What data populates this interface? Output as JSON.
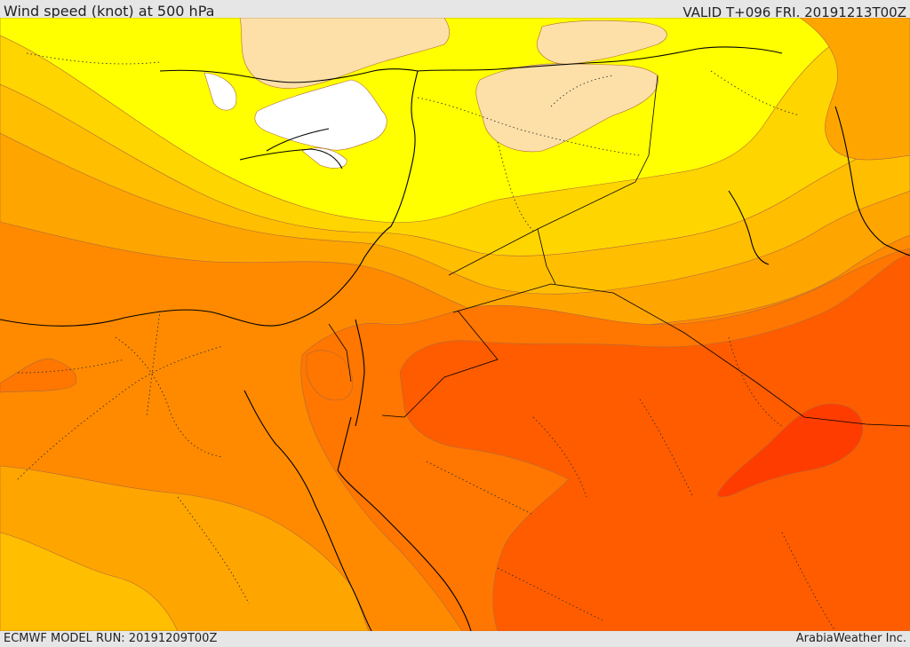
{
  "header": {
    "title": "Wind speed (knot) at 500 hPa",
    "valid_label": "VALID T+096 FRI. 20191213T00Z"
  },
  "footer": {
    "model_run": "ECMWF MODEL RUN: 20191209T00Z",
    "credit": "ArabiaWeather Inc."
  },
  "map": {
    "variable": "wind speed",
    "units": "knot",
    "pressure_level_hPa": 500,
    "colors": {
      "band_0_white": "#ffffff",
      "band_1_wheat": "#fde0a8",
      "band_2_yellow": "#ffff00",
      "band_3_gold": "#ffd500",
      "band_4_amber": "#ffbe00",
      "band_5_orange_light": "#ffa500",
      "band_6_orange": "#ff8a00",
      "band_7_orange_dark": "#ff7600",
      "band_8_red_orange": "#ff5c00",
      "band_9_red": "#ff3c00"
    }
  }
}
